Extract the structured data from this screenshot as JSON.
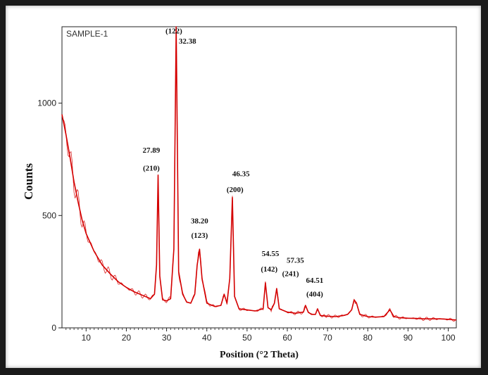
{
  "chart_data": {
    "type": "line",
    "title": "",
    "sample_label": "SAMPLE-1",
    "xlabel": "Position (°2 Theta)",
    "ylabel": "Counts",
    "xlim": [
      4,
      102
    ],
    "ylim": [
      0,
      1340
    ],
    "x_ticks": [
      10,
      20,
      30,
      40,
      50,
      60,
      70,
      80,
      90,
      100
    ],
    "y_ticks": [
      0,
      500,
      1000
    ],
    "grid": false,
    "series": [
      {
        "color": "#d40000",
        "x": [
          4,
          5,
          6,
          7,
          8,
          9,
          10,
          12,
          14,
          16,
          18,
          20,
          22,
          24,
          26,
          27,
          27.5,
          27.89,
          28.3,
          29,
          30,
          31,
          31.8,
          32.38,
          33,
          34,
          35,
          36,
          37,
          37.6,
          38.2,
          38.8,
          40,
          42,
          43.5,
          44.3,
          45,
          45.7,
          46.35,
          46.9,
          48,
          50,
          52,
          54,
          54.55,
          55.2,
          56,
          56.8,
          57.35,
          58,
          60,
          62,
          64,
          64.51,
          65.2,
          66,
          67,
          67.5,
          68.2,
          70,
          72,
          74,
          75,
          76,
          76.6,
          77.2,
          78,
          80,
          82,
          84,
          85.5,
          86.5,
          88,
          90,
          92,
          94,
          96,
          98,
          100,
          102
        ],
        "y": [
          950,
          860,
          760,
          650,
          560,
          480,
          420,
          340,
          280,
          240,
          205,
          180,
          160,
          145,
          130,
          150,
          280,
          680,
          230,
          125,
          120,
          130,
          350,
          1340,
          250,
          150,
          115,
          110,
          150,
          280,
          350,
          220,
          110,
          95,
          100,
          150,
          110,
          220,
          580,
          140,
          85,
          80,
          75,
          85,
          200,
          90,
          80,
          110,
          175,
          85,
          70,
          65,
          70,
          100,
          70,
          60,
          60,
          85,
          55,
          52,
          50,
          55,
          60,
          80,
          125,
          110,
          60,
          50,
          48,
          50,
          80,
          50,
          45,
          43,
          42,
          40,
          40,
          40,
          38,
          35
        ]
      }
    ],
    "annotations": [
      {
        "text": "(122)",
        "x": 31.8,
        "y": 1310
      },
      {
        "text": "32.38",
        "x": 35.2,
        "y": 1265
      },
      {
        "text": "27.89",
        "x": 26.2,
        "y": 780
      },
      {
        "text": "(210)",
        "x": 26.2,
        "y": 700
      },
      {
        "text": "46.35",
        "x": 48.5,
        "y": 675
      },
      {
        "text": "(200)",
        "x": 47.0,
        "y": 605
      },
      {
        "text": "38.20",
        "x": 38.2,
        "y": 465
      },
      {
        "text": "(123)",
        "x": 38.2,
        "y": 400
      },
      {
        "text": "54.55",
        "x": 55.8,
        "y": 320
      },
      {
        "text": "(142)",
        "x": 55.5,
        "y": 250
      },
      {
        "text": "57.35",
        "x": 62.0,
        "y": 290
      },
      {
        "text": "(241)",
        "x": 60.8,
        "y": 230
      },
      {
        "text": "64.51",
        "x": 66.8,
        "y": 200
      },
      {
        "text": "(404)",
        "x": 66.8,
        "y": 140
      }
    ]
  }
}
